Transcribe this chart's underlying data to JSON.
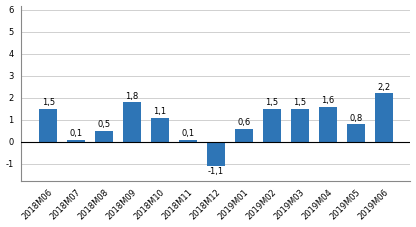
{
  "categories": [
    "2018M06",
    "2018M07",
    "2018M08",
    "2018M09",
    "2018M10",
    "2018M11",
    "2018M12",
    "2019M01",
    "2019M02",
    "2019M03",
    "2019M04",
    "2019M05",
    "2019M06"
  ],
  "values": [
    1.5,
    0.1,
    0.5,
    1.8,
    1.1,
    0.1,
    -1.1,
    0.6,
    1.5,
    1.5,
    1.6,
    0.8,
    2.2
  ],
  "bar_color": "#2E75B6",
  "ylim": [
    -1.8,
    6.2
  ],
  "yticks": [
    -1,
    0,
    1,
    2,
    3,
    4,
    5,
    6
  ],
  "label_fontsize": 6,
  "tick_fontsize": 6,
  "background_color": "#ffffff",
  "grid_color": "#d0d0d0"
}
